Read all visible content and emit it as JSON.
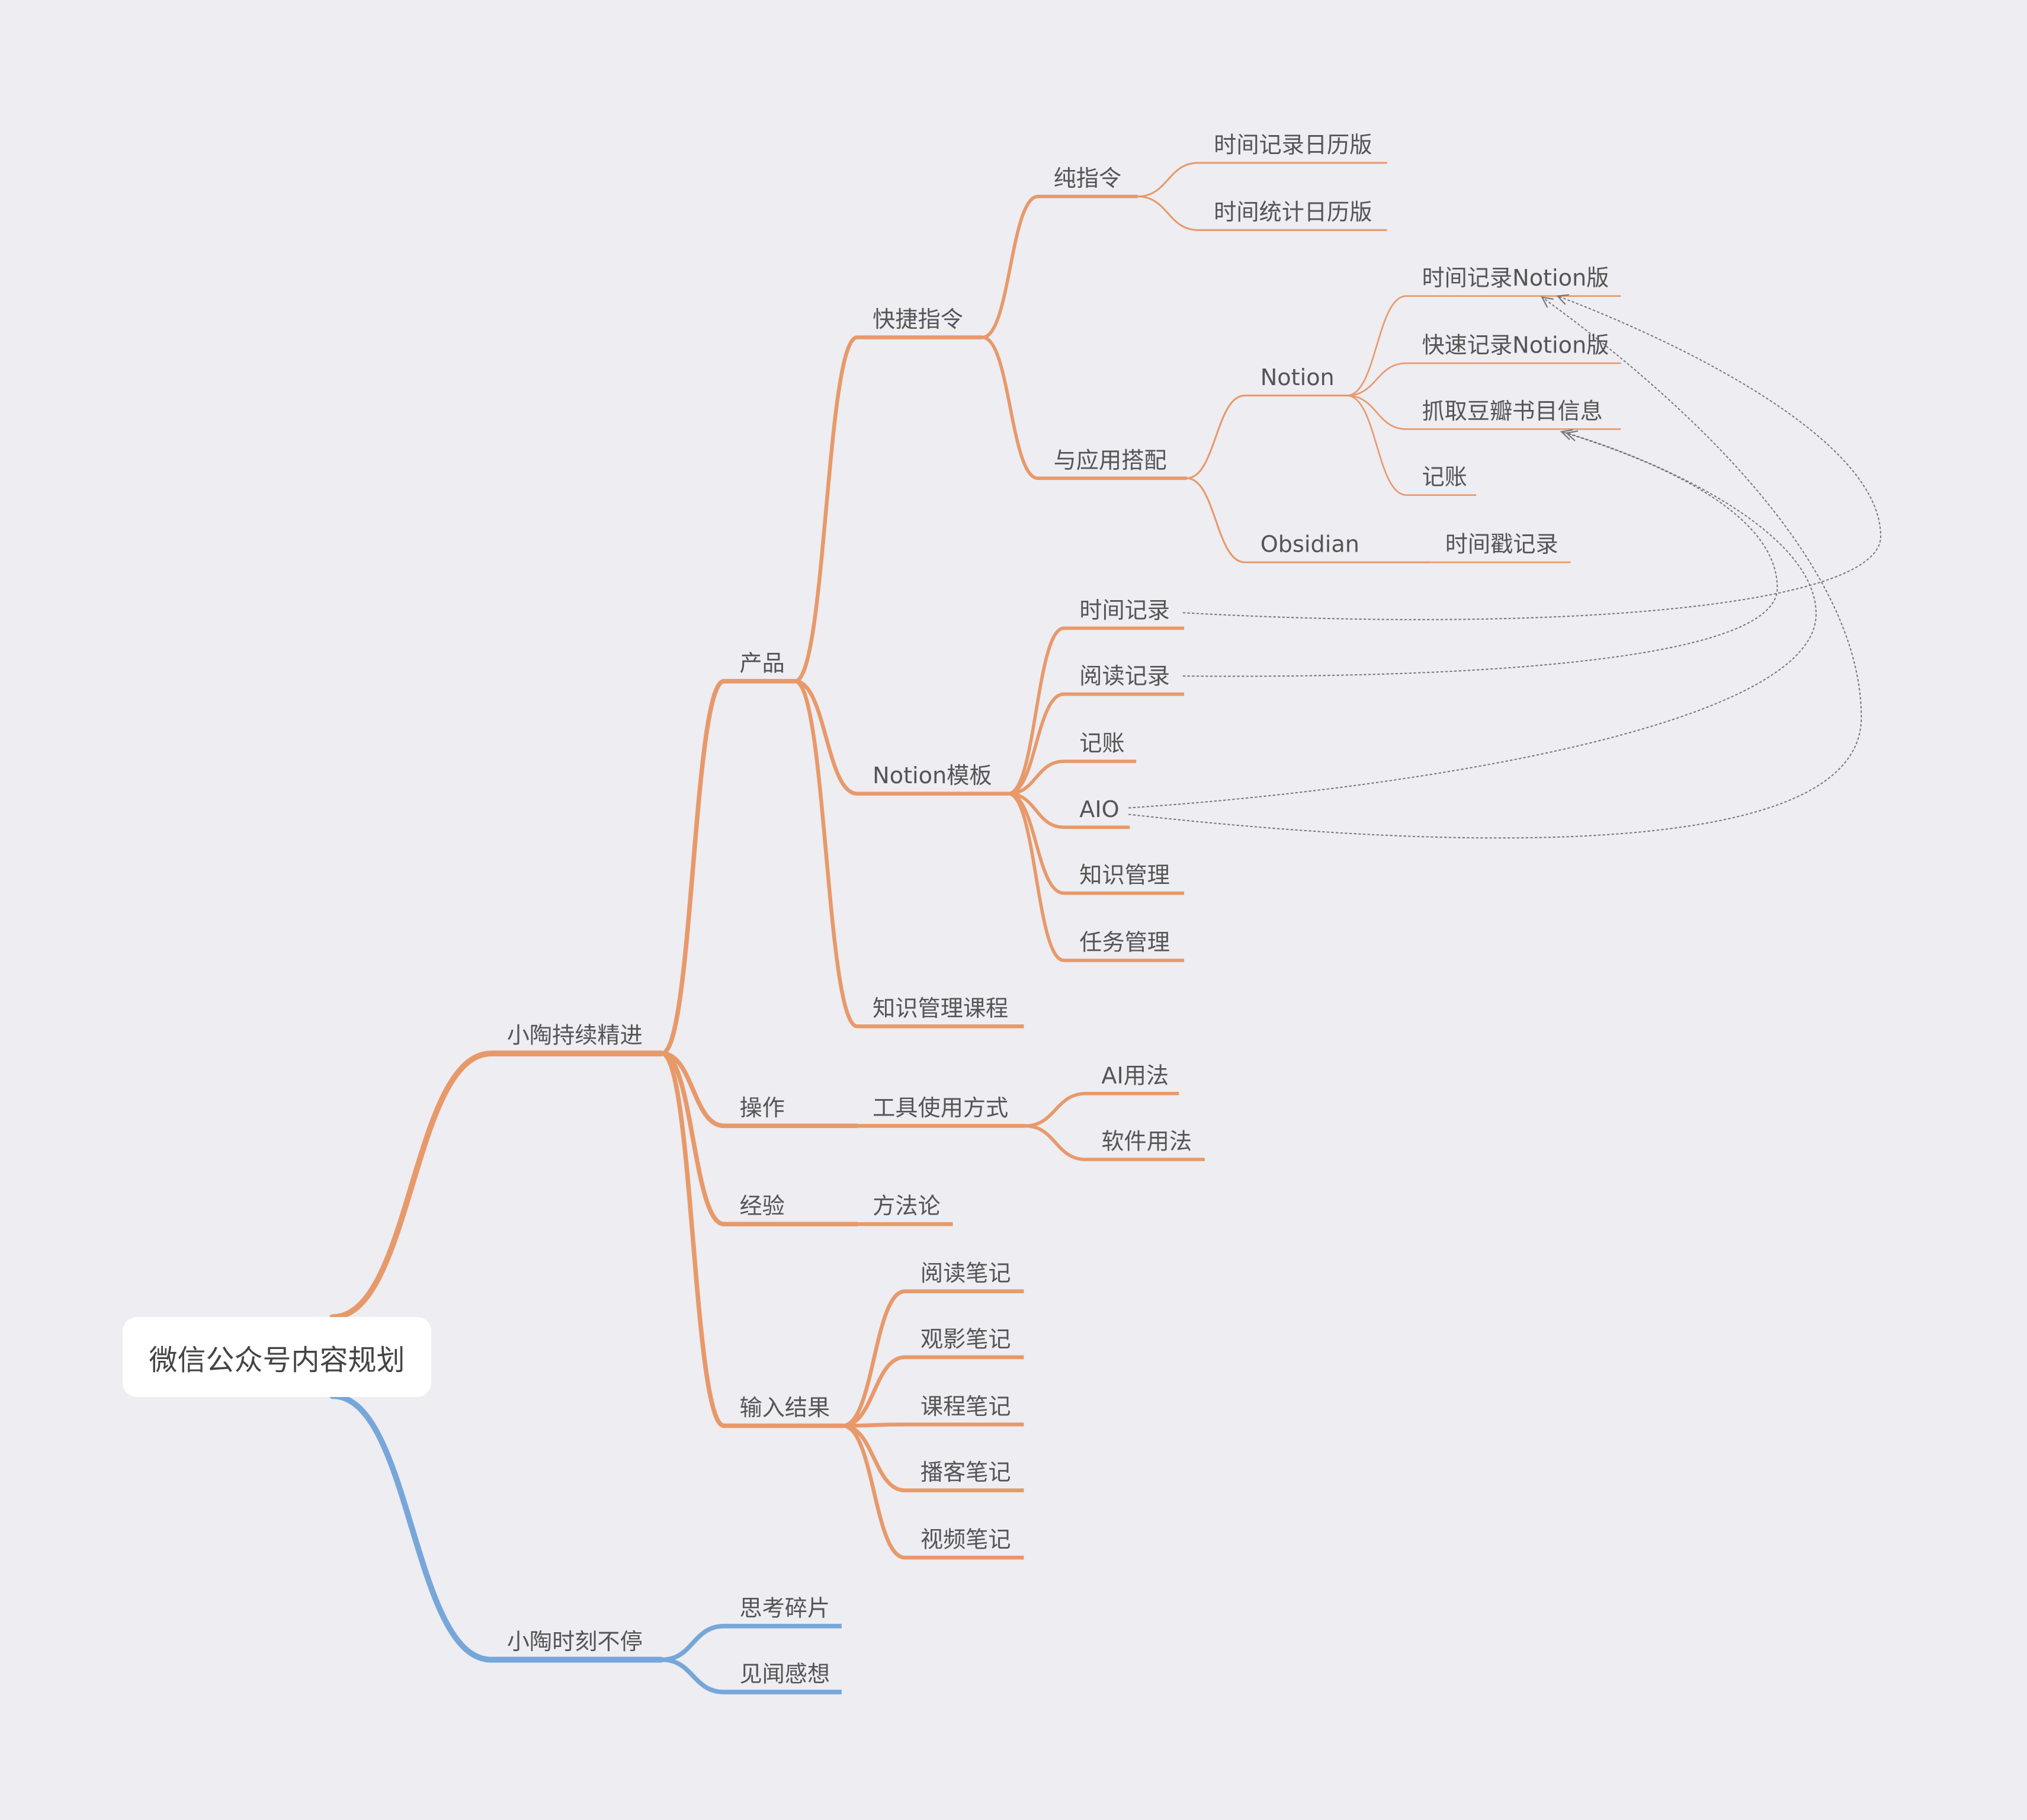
{
  "colors": {
    "background": "#EDEDF2",
    "branch_orange": "#E8996A",
    "branch_blue": "#77A6D9",
    "relation": "#777777",
    "text": "#555555"
  },
  "root": {
    "title": "微信公众号内容规划",
    "children": [
      {
        "label": "小陶持续精进",
        "children": [
          {
            "label": "产品",
            "children": [
              {
                "label": "快捷指令",
                "children": [
                  {
                    "label": "纯指令",
                    "children": [
                      {
                        "label": "时间记录日历版"
                      },
                      {
                        "label": "时间统计日历版"
                      }
                    ]
                  },
                  {
                    "label": "与应用搭配",
                    "children": [
                      {
                        "label": "Notion",
                        "children": [
                          {
                            "label": "时间记录Notion版"
                          },
                          {
                            "label": "快速记录Notion版"
                          },
                          {
                            "label": "抓取豆瓣书目信息"
                          },
                          {
                            "label": "记账"
                          }
                        ]
                      },
                      {
                        "label": "Obsidian",
                        "children": [
                          {
                            "label": "时间戳记录"
                          }
                        ]
                      }
                    ]
                  }
                ]
              },
              {
                "label": "Notion模板",
                "children": [
                  {
                    "label": "时间记录"
                  },
                  {
                    "label": "阅读记录"
                  },
                  {
                    "label": "记账"
                  },
                  {
                    "label": "AIO"
                  },
                  {
                    "label": "知识管理"
                  },
                  {
                    "label": "任务管理"
                  }
                ]
              },
              {
                "label": "知识管理课程"
              }
            ]
          },
          {
            "label": "操作",
            "children": [
              {
                "label": "工具使用方式",
                "children": [
                  {
                    "label": "AI用法"
                  },
                  {
                    "label": "软件用法"
                  }
                ]
              }
            ]
          },
          {
            "label": "经验",
            "children": [
              {
                "label": "方法论"
              }
            ]
          },
          {
            "label": "输入结果",
            "children": [
              {
                "label": "阅读笔记"
              },
              {
                "label": "观影笔记"
              },
              {
                "label": "课程笔记"
              },
              {
                "label": "播客笔记"
              },
              {
                "label": "视频笔记"
              }
            ]
          }
        ]
      },
      {
        "label": "小陶时刻不停",
        "children": [
          {
            "label": "思考碎片"
          },
          {
            "label": "见闻感想"
          }
        ]
      }
    ]
  },
  "relations": [
    {
      "from": "时间记录",
      "to": "时间记录Notion版"
    },
    {
      "from": "阅读记录",
      "to": "抓取豆瓣书目信息"
    },
    {
      "from": "AIO",
      "to": "抓取豆瓣书目信息"
    },
    {
      "from": "AIO",
      "to": "时间记录Notion版"
    }
  ]
}
